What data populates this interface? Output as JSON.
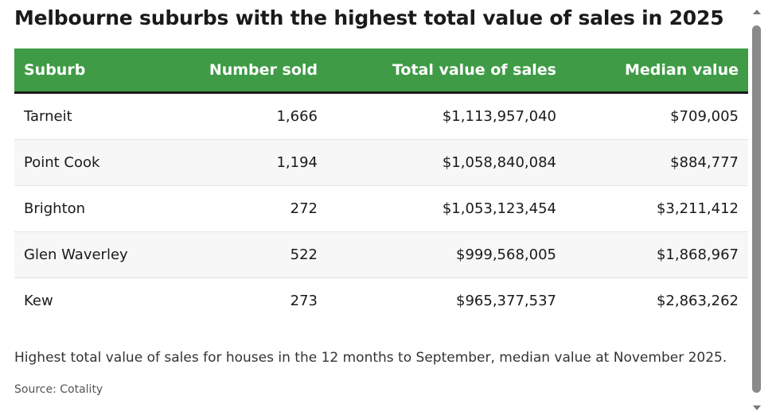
{
  "chart_data": {
    "type": "table",
    "title": "Melbourne suburbs with the highest total value of sales in 2025",
    "columns": [
      "Suburb",
      "Number sold",
      "Total value of sales",
      "Median value"
    ],
    "rows": [
      [
        "Tarneit",
        "1,666",
        "$1,113,957,040",
        "$709,005"
      ],
      [
        "Point Cook",
        "1,194",
        "$1,058,840,084",
        "$884,777"
      ],
      [
        "Brighton",
        "272",
        "$1,053,123,454",
        "$3,211,412"
      ],
      [
        "Glen Waverley",
        "522",
        "$999,568,005",
        "$1,868,967"
      ],
      [
        "Kew",
        "273",
        "$965,377,537",
        "$2,863,262"
      ]
    ],
    "note": "Highest total value of sales for houses in the 12 months to September, median value at November 2025.",
    "source": "Source: Cotality",
    "colors": {
      "header_background": "#3f9b46",
      "header_text": "#ffffff"
    }
  }
}
